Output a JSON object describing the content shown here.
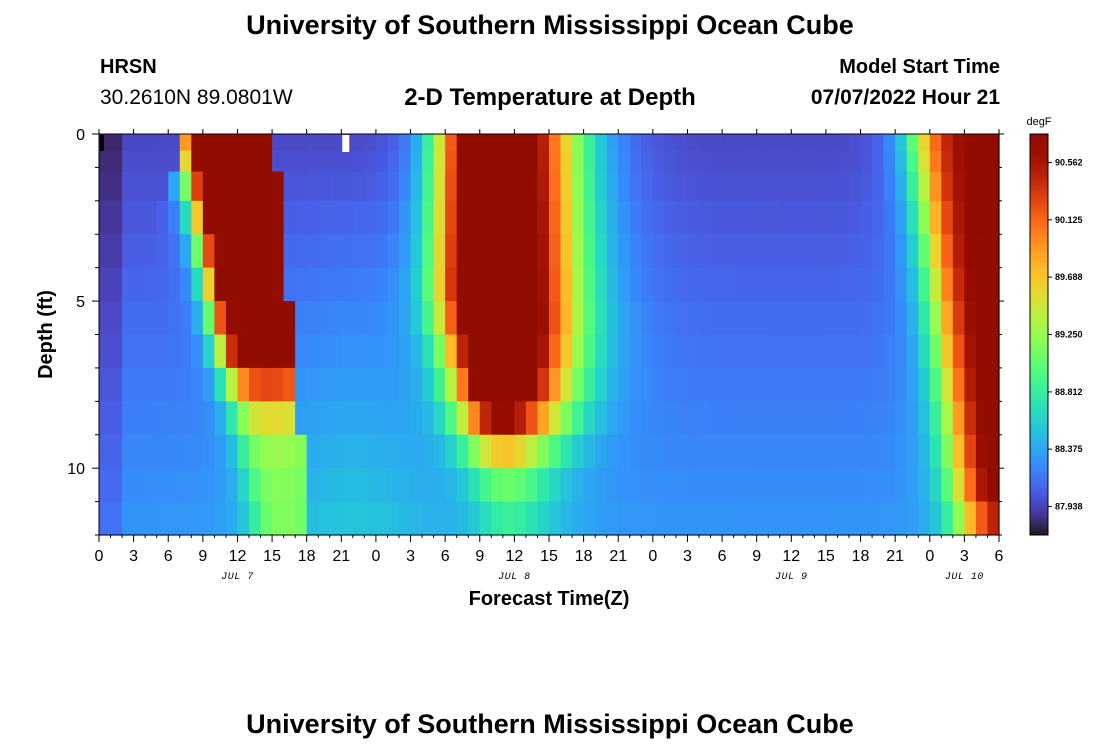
{
  "header": {
    "title": "University of Southern Mississippi Ocean Cube",
    "station": "HRSN",
    "coordinates": "30.2610N  89.0801W",
    "plot_title": "2-D Temperature at Depth",
    "start_label": "Model Start Time",
    "start_value": "07/07/2022 Hour 21"
  },
  "footer": {
    "title": "University of Southern Mississippi Ocean Cube"
  },
  "chart_data": {
    "type": "heatmap",
    "title": "2-D Temperature at Depth",
    "xlabel": "Forecast Time(Z)",
    "ylabel": "Depth (ft)",
    "x_range_hours": [
      0,
      78
    ],
    "y_range_ft": [
      0,
      12
    ],
    "x_tick_labels": [
      "0",
      "3",
      "6",
      "9",
      "12",
      "15",
      "18",
      "21",
      "0",
      "3",
      "6",
      "9",
      "12",
      "15",
      "18",
      "21",
      "0",
      "3",
      "6",
      "9",
      "12",
      "15",
      "18",
      "21",
      "0",
      "3",
      "6"
    ],
    "y_ticks": [
      0,
      5,
      10
    ],
    "date_labels": [
      {
        "label": "JUL 7",
        "hour": 12
      },
      {
        "label": "JUL 8",
        "hour": 36
      },
      {
        "label": "JUL 9",
        "hour": 60
      },
      {
        "label": "JUL 10",
        "hour": 75
      }
    ],
    "colorbar": {
      "unit": "degF",
      "labels": [
        "90.562",
        "90.125",
        "89.688",
        "89.250",
        "88.812",
        "88.375",
        "87.938"
      ],
      "values": [
        90.562,
        90.125,
        89.688,
        89.25,
        88.812,
        88.375,
        87.938
      ],
      "range": [
        87.72,
        90.78
      ]
    },
    "depth_levels_ft": [
      0.25,
      0.75,
      1.5,
      2.5,
      3.5,
      4.5,
      5.5,
      6.5,
      7.5,
      8.5,
      9.5,
      10.5,
      11.5
    ],
    "time_step_hours": 1,
    "temperature_profile_degF": {
      "surface_warm_cores": [
        {
          "center_hour": 11,
          "peak": 90.45
        },
        {
          "center_hour": 34,
          "peak": 90.6
        },
        {
          "center_hour": 78,
          "peak": 90.5
        }
      ],
      "cool_minimum": 87.9
    }
  }
}
